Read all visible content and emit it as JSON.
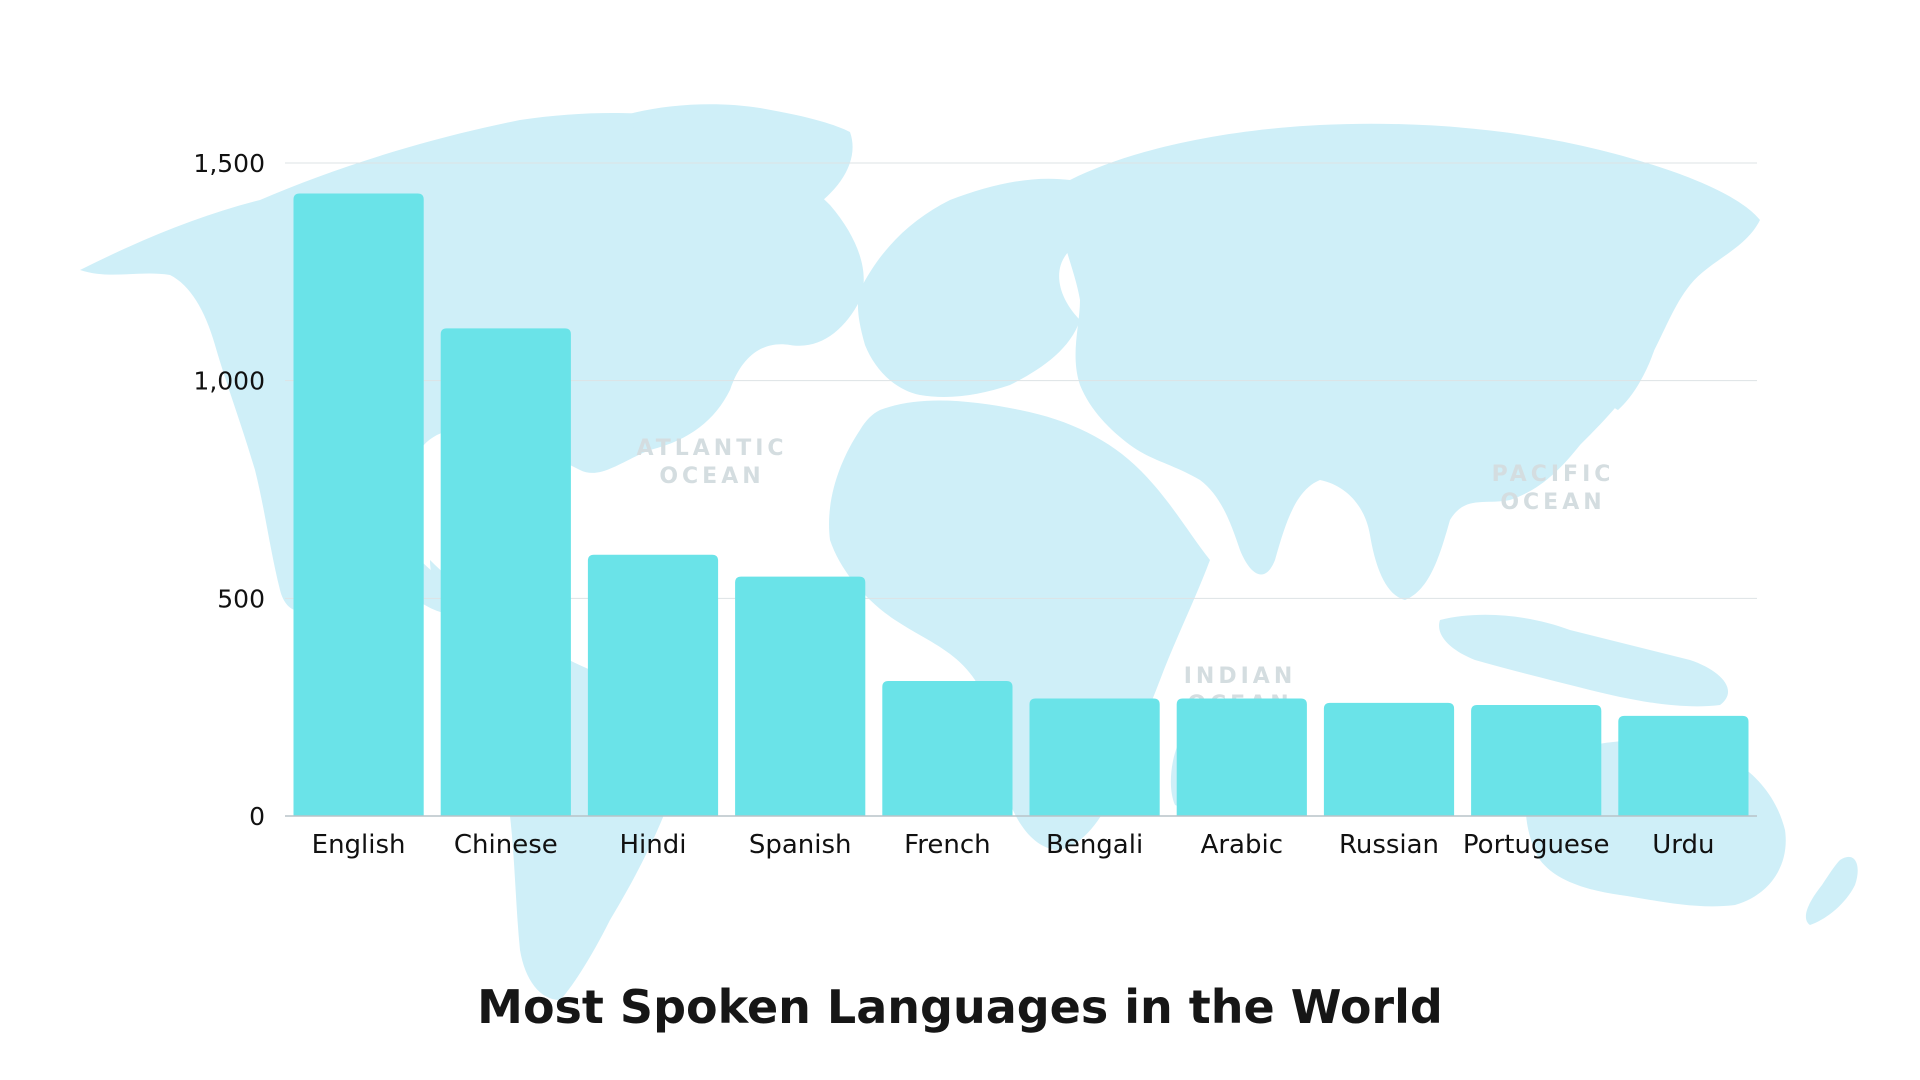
{
  "background": {
    "map_color": "#cfeff8",
    "ocean_labels": [
      {
        "line1": "ATLANTIC",
        "line2": "OCEAN"
      },
      {
        "line1": "PACIFIC",
        "line2": "OCEAN"
      },
      {
        "line1": "INDIAN",
        "line2": "OCEAN"
      }
    ]
  },
  "chart_data": {
    "type": "bar",
    "title": "Most Spoken Languages in the World",
    "xlabel": "",
    "ylabel": "",
    "categories": [
      "English",
      "Chinese",
      "Hindi",
      "Spanish",
      "French",
      "Bengali",
      "Arabic",
      "Russian",
      "Portuguese",
      "Urdu"
    ],
    "values": [
      1430,
      1120,
      600,
      550,
      310,
      270,
      270,
      260,
      255,
      230
    ],
    "ylim": [
      0,
      1500
    ],
    "yticks": [
      0,
      500,
      1000,
      1500
    ],
    "ytick_labels": [
      "0",
      "500",
      "1,000",
      "1,500"
    ],
    "grid": true,
    "bar_color": "#6ae3e8"
  }
}
